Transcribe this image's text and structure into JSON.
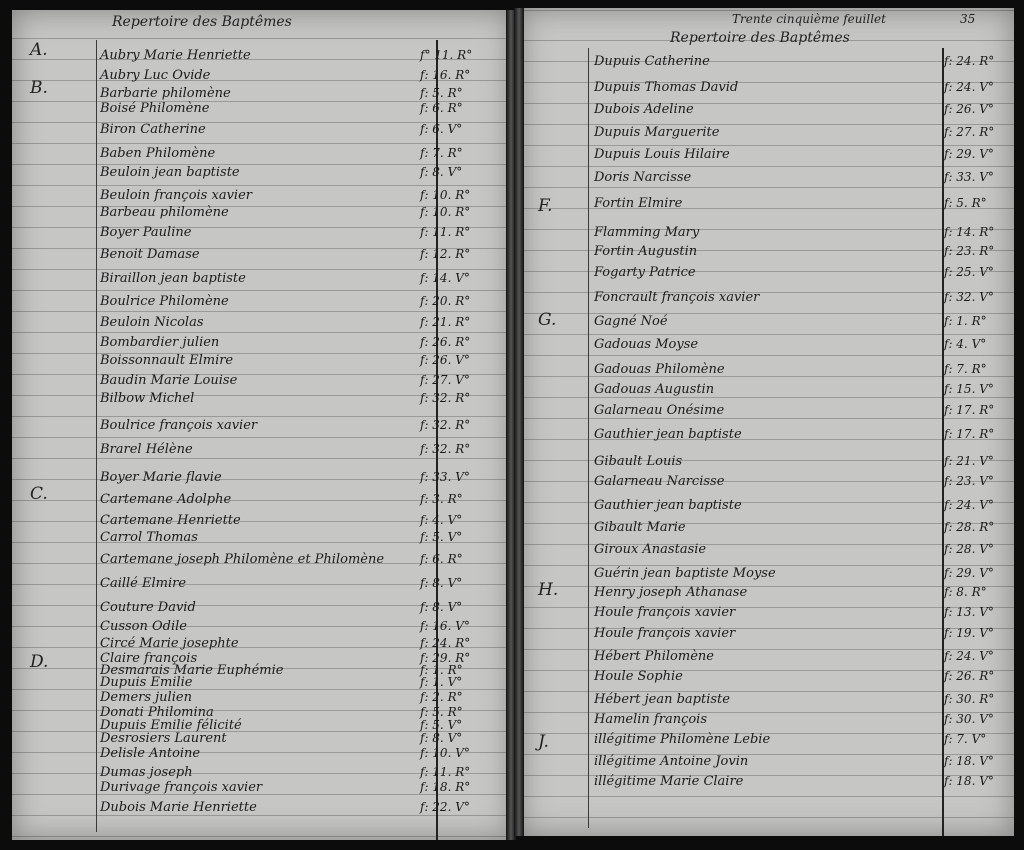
{
  "left_page": {
    "title": "Repertoire des Baptêmes",
    "sections": [
      {
        "letter": "A.",
        "entries": [
          {
            "name": "Aubry Marie Henriette",
            "folio": "f° 11. R°"
          },
          {
            "name": "Aubry Luc Ovide",
            "folio": "f: 16. R°"
          }
        ]
      },
      {
        "letter": "B.",
        "entries": [
          {
            "name": "Barbarie philomène",
            "folio": "f: 5. R°"
          },
          {
            "name": "Boisé Philomène",
            "folio": "f: 6. R°"
          },
          {
            "name": "Biron Catherine",
            "folio": "f: 6. V°"
          },
          {
            "name": "Baben Philomène",
            "folio": "f: 7. R°"
          },
          {
            "name": "Beuloin jean baptiste",
            "folio": "f: 8. V°"
          },
          {
            "name": "Beuloin françois xavier",
            "folio": "f: 10. R°"
          },
          {
            "name": "Barbeau philomène",
            "folio": "f: 10. R°"
          },
          {
            "name": "Boyer Pauline",
            "folio": "f: 11. R°"
          },
          {
            "name": "Benoit Damase",
            "folio": "f: 12. R°"
          },
          {
            "name": "Biraillon jean baptiste",
            "folio": "f: 14. V°"
          },
          {
            "name": "Boulrice Philomène",
            "folio": "f: 20. R°"
          },
          {
            "name": "Beuloin Nicolas",
            "folio": "f: 21. R°"
          },
          {
            "name": "Bombardier julien",
            "folio": "f: 26. R°"
          },
          {
            "name": "Boissonnault Elmire",
            "folio": "f: 26. V°"
          },
          {
            "name": "Baudin Marie Louise",
            "folio": "f: 27. V°"
          },
          {
            "name": "Bilbow Michel",
            "folio": "f: 32. R°"
          },
          {
            "name": "Boulrice françois xavier",
            "folio": "f: 32. R°"
          },
          {
            "name": "Brarel Hélène",
            "folio": "f: 32. R°"
          },
          {
            "name": "Boyer Marie flavie",
            "folio": "f: 33. V°"
          }
        ]
      },
      {
        "letter": "C.",
        "entries": [
          {
            "name": "Cartemane Adolphe",
            "folio": "f: 3. R°"
          },
          {
            "name": "Cartemane Henriette",
            "folio": "f: 4. V°"
          },
          {
            "name": "Carrol Thomas",
            "folio": "f: 5. V°"
          },
          {
            "name": "Cartemane joseph Philomène et Philomène",
            "folio": "f: 6. R°"
          },
          {
            "name": "Caillé Elmire",
            "folio": "f: 8. V°"
          },
          {
            "name": "Couture David",
            "folio": "f: 8. V°"
          },
          {
            "name": "Cusson Odile",
            "folio": "f: 16. V°"
          },
          {
            "name": "Circé Marie josephte",
            "folio": "f: 24. R°"
          },
          {
            "name": "Claire françois",
            "folio": "f: 29. R°"
          }
        ]
      },
      {
        "letter": "D.",
        "entries": [
          {
            "name": "Desmarais Marie Euphémie",
            "folio": "f: 1. R°"
          },
          {
            "name": "Dupuis Emilie",
            "folio": "f: 1. V°"
          },
          {
            "name": "Demers julien",
            "folio": "f: 2. R°"
          },
          {
            "name": "Donati Philomina",
            "folio": "f: 5. R°"
          },
          {
            "name": "Dupuis Emilie félicité",
            "folio": "f: 5. V°"
          },
          {
            "name": "Desrosiers Laurent",
            "folio": "f: 8. V°"
          },
          {
            "name": "Delisle Antoine",
            "folio": "f: 10. V°"
          },
          {
            "name": "Dumas joseph",
            "folio": "f: 11. R°"
          },
          {
            "name": "Durivage françois xavier",
            "folio": "f: 18. R°"
          },
          {
            "name": "Dubois Marie Henriette",
            "folio": "f: 22. V°"
          }
        ]
      }
    ]
  },
  "right_page": {
    "leaf_note": "Trente cinquième feuillet",
    "page_number": "35",
    "title": "Repertoire des Baptêmes",
    "sections": [
      {
        "letter": "",
        "entries": [
          {
            "name": "Dupuis Catherine",
            "folio": "f: 24. R°"
          },
          {
            "name": "Dupuis Thomas David",
            "folio": "f: 24. V°"
          },
          {
            "name": "Dubois Adeline",
            "folio": "f: 26. V°"
          },
          {
            "name": "Dupuis Marguerite",
            "folio": "f: 27. R°"
          },
          {
            "name": "Dupuis Louis Hilaire",
            "folio": "f: 29. V°"
          },
          {
            "name": "Doris Narcisse",
            "folio": "f: 33. V°"
          }
        ]
      },
      {
        "letter": "F.",
        "entries": [
          {
            "name": "Fortin Elmire",
            "folio": "f: 5. R°"
          },
          {
            "name": "Flamming Mary",
            "folio": "f: 14. R°"
          },
          {
            "name": "Fortin Augustin",
            "folio": "f: 23. R°"
          },
          {
            "name": "Fogarty Patrice",
            "folio": "f: 25. V°"
          },
          {
            "name": "Foncrault françois xavier",
            "folio": "f: 32. V°"
          }
        ]
      },
      {
        "letter": "G.",
        "entries": [
          {
            "name": "Gagné Noé",
            "folio": "f: 1. R°"
          },
          {
            "name": "Gadouas Moyse",
            "folio": "f: 4. V°"
          },
          {
            "name": "Gadouas Philomène",
            "folio": "f: 7. R°"
          },
          {
            "name": "Gadouas Augustin",
            "folio": "f: 15. V°"
          },
          {
            "name": "Galarneau Onésime",
            "folio": "f: 17. R°"
          },
          {
            "name": "Gauthier jean baptiste",
            "folio": "f: 17. R°"
          },
          {
            "name": "Gibault Louis",
            "folio": "f: 21. V°"
          },
          {
            "name": "Galarneau Narcisse",
            "folio": "f: 23. V°"
          },
          {
            "name": "Gauthier jean baptiste",
            "folio": "f: 24. V°"
          },
          {
            "name": "Gibault Marie",
            "folio": "f: 28. R°"
          },
          {
            "name": "Giroux Anastasie",
            "folio": "f: 28. V°"
          },
          {
            "name": "Guérin jean baptiste Moyse",
            "folio": "f: 29. V°"
          }
        ]
      },
      {
        "letter": "H.",
        "entries": [
          {
            "name": "Henry joseph Athanase",
            "folio": "f: 8. R°"
          },
          {
            "name": "Houle françois xavier",
            "folio": "f: 13. V°"
          },
          {
            "name": "Houle françois xavier",
            "folio": "f: 19. V°"
          },
          {
            "name": "Hébert Philomène",
            "folio": "f: 24. V°"
          },
          {
            "name": "Houle Sophie",
            "folio": "f: 26. R°"
          },
          {
            "name": "Hébert jean baptiste",
            "folio": "f: 30. R°"
          },
          {
            "name": "Hamelin françois",
            "folio": "f: 30. V°"
          }
        ]
      },
      {
        "letter": "J.",
        "entries": [
          {
            "name": "illégitime Philomène Lebie",
            "folio": "f: 7. V°"
          },
          {
            "name": "illégitime Antoine Jovin",
            "folio": "f: 18. V°"
          },
          {
            "name": "illégitime Marie Claire",
            "folio": "f: 18. V°"
          }
        ]
      }
    ]
  }
}
